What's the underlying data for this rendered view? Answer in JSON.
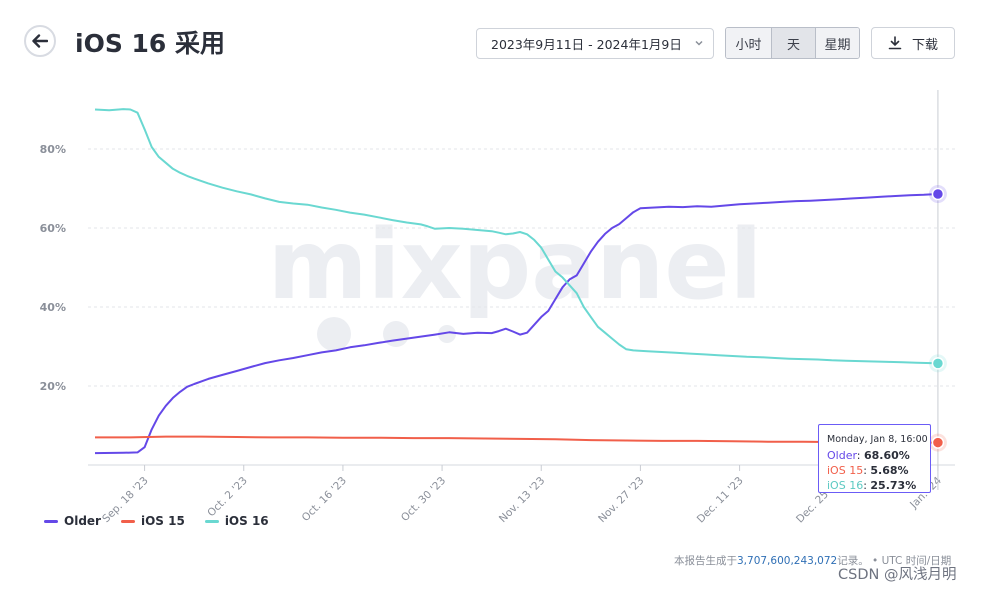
{
  "header": {
    "title": "iOS 16 采用",
    "date_range": "2023年9月11日 - 2024年1月9日",
    "granularity": [
      "小时",
      "天",
      "星期"
    ],
    "granularity_selected": "天",
    "download_label": "下载"
  },
  "watermark": "mixpanel",
  "chart_data": {
    "type": "line",
    "title": "iOS 16 采用",
    "x_tick_labels": [
      "Sep. 18 '23",
      "Oct. 2 '23",
      "Oct. 16 '23",
      "Oct. 30 '23",
      "Nov. 13 '23",
      "Nov. 27 '23",
      "Dec. 11 '23",
      "Dec. 25 '23",
      "Jan. '24"
    ],
    "y_tick_labels": [
      "20%",
      "40%",
      "60%",
      "80%"
    ],
    "y_ticks": [
      20,
      40,
      60,
      80
    ],
    "ylim": [
      0,
      100
    ],
    "x_range_days": [
      0,
      120
    ],
    "x_tick_days": [
      7,
      21,
      35,
      49,
      63,
      77,
      91,
      105,
      119
    ],
    "series": [
      {
        "name": "Older",
        "color": "#6448e8",
        "points": [
          [
            0,
            3.0
          ],
          [
            4,
            3.1
          ],
          [
            6,
            3.2
          ],
          [
            7,
            4.5
          ],
          [
            8,
            9
          ],
          [
            9,
            12.5
          ],
          [
            10,
            15
          ],
          [
            11,
            17
          ],
          [
            12,
            18.5
          ],
          [
            13,
            19.8
          ],
          [
            14,
            20.5
          ],
          [
            16,
            21.8
          ],
          [
            18,
            22.8
          ],
          [
            20,
            23.8
          ],
          [
            22,
            24.8
          ],
          [
            24,
            25.8
          ],
          [
            26,
            26.5
          ],
          [
            28,
            27.1
          ],
          [
            30,
            27.8
          ],
          [
            32,
            28.5
          ],
          [
            34,
            29.0
          ],
          [
            36,
            29.8
          ],
          [
            38,
            30.3
          ],
          [
            40,
            30.9
          ],
          [
            42,
            31.5
          ],
          [
            44,
            32.0
          ],
          [
            46,
            32.5
          ],
          [
            48,
            33.0
          ],
          [
            50,
            33.6
          ],
          [
            52,
            33.2
          ],
          [
            54,
            33.5
          ],
          [
            56,
            33.4
          ],
          [
            57,
            33.9
          ],
          [
            58,
            34.5
          ],
          [
            59,
            33.8
          ],
          [
            60,
            33.0
          ],
          [
            61,
            33.5
          ],
          [
            62,
            35.5
          ],
          [
            63,
            37.5
          ],
          [
            64,
            39
          ],
          [
            65,
            42
          ],
          [
            66,
            45
          ],
          [
            67,
            47
          ],
          [
            68,
            48
          ],
          [
            69,
            51
          ],
          [
            70,
            54
          ],
          [
            71,
            56.5
          ],
          [
            72,
            58.5
          ],
          [
            73,
            60
          ],
          [
            74,
            61
          ],
          [
            75,
            62.5
          ],
          [
            76,
            64
          ],
          [
            77,
            65
          ],
          [
            79,
            65.2
          ],
          [
            81,
            65.4
          ],
          [
            83,
            65.3
          ],
          [
            85,
            65.5
          ],
          [
            87,
            65.4
          ],
          [
            89,
            65.7
          ],
          [
            91,
            66.0
          ],
          [
            93,
            66.2
          ],
          [
            95,
            66.4
          ],
          [
            97,
            66.6
          ],
          [
            99,
            66.8
          ],
          [
            101,
            66.9
          ],
          [
            103,
            67.1
          ],
          [
            105,
            67.3
          ],
          [
            107,
            67.5
          ],
          [
            109,
            67.7
          ],
          [
            111,
            67.9
          ],
          [
            113,
            68.1
          ],
          [
            115,
            68.3
          ],
          [
            117,
            68.4
          ],
          [
            119,
            68.6
          ]
        ]
      },
      {
        "name": "iOS 15",
        "color": "#f15f4a",
        "points": [
          [
            0,
            7.0
          ],
          [
            5,
            7.0
          ],
          [
            10,
            7.2
          ],
          [
            15,
            7.2
          ],
          [
            20,
            7.1
          ],
          [
            25,
            7.0
          ],
          [
            30,
            7.0
          ],
          [
            35,
            6.9
          ],
          [
            40,
            6.9
          ],
          [
            45,
            6.8
          ],
          [
            50,
            6.8
          ],
          [
            55,
            6.7
          ],
          [
            60,
            6.6
          ],
          [
            65,
            6.5
          ],
          [
            70,
            6.3
          ],
          [
            75,
            6.2
          ],
          [
            80,
            6.1
          ],
          [
            85,
            6.1
          ],
          [
            90,
            6.0
          ],
          [
            95,
            5.9
          ],
          [
            100,
            5.9
          ],
          [
            105,
            5.8
          ],
          [
            110,
            5.8
          ],
          [
            115,
            5.7
          ],
          [
            119,
            5.68
          ]
        ]
      },
      {
        "name": "iOS 16",
        "color": "#6ad8d1",
        "points": [
          [
            0,
            90.0
          ],
          [
            2,
            89.8
          ],
          [
            4,
            90.1
          ],
          [
            5,
            90.0
          ],
          [
            6,
            89.2
          ],
          [
            7,
            85
          ],
          [
            8,
            80.5
          ],
          [
            9,
            78
          ],
          [
            10,
            76.5
          ],
          [
            11,
            75
          ],
          [
            12,
            74
          ],
          [
            13,
            73.2
          ],
          [
            14,
            72.5
          ],
          [
            16,
            71.3
          ],
          [
            18,
            70.2
          ],
          [
            20,
            69.3
          ],
          [
            22,
            68.5
          ],
          [
            24,
            67.5
          ],
          [
            26,
            66.6
          ],
          [
            28,
            66.2
          ],
          [
            30,
            65.9
          ],
          [
            32,
            65.2
          ],
          [
            34,
            64.6
          ],
          [
            36,
            63.9
          ],
          [
            38,
            63.4
          ],
          [
            40,
            62.7
          ],
          [
            42,
            62.0
          ],
          [
            44,
            61.4
          ],
          [
            46,
            60.9
          ],
          [
            47,
            60.4
          ],
          [
            48,
            59.8
          ],
          [
            50,
            60.0
          ],
          [
            52,
            59.8
          ],
          [
            54,
            59.5
          ],
          [
            56,
            59.2
          ],
          [
            57,
            58.8
          ],
          [
            58,
            58.4
          ],
          [
            59,
            58.6
          ],
          [
            60,
            59.0
          ],
          [
            61,
            58.4
          ],
          [
            62,
            57
          ],
          [
            63,
            55
          ],
          [
            64,
            52
          ],
          [
            65,
            49
          ],
          [
            66,
            47.5
          ],
          [
            67,
            45.5
          ],
          [
            68,
            43.5
          ],
          [
            69,
            40
          ],
          [
            70,
            37.5
          ],
          [
            71,
            35
          ],
          [
            72,
            33.5
          ],
          [
            73,
            32
          ],
          [
            74,
            30.5
          ],
          [
            75,
            29.3
          ],
          [
            76,
            29.0
          ],
          [
            78,
            28.8
          ],
          [
            80,
            28.6
          ],
          [
            82,
            28.4
          ],
          [
            84,
            28.2
          ],
          [
            86,
            28.0
          ],
          [
            88,
            27.8
          ],
          [
            90,
            27.6
          ],
          [
            92,
            27.4
          ],
          [
            94,
            27.3
          ],
          [
            96,
            27.1
          ],
          [
            98,
            26.9
          ],
          [
            100,
            26.8
          ],
          [
            102,
            26.7
          ],
          [
            104,
            26.5
          ],
          [
            106,
            26.4
          ],
          [
            108,
            26.3
          ],
          [
            110,
            26.2
          ],
          [
            112,
            26.1
          ],
          [
            114,
            26.0
          ],
          [
            116,
            25.9
          ],
          [
            118,
            25.8
          ],
          [
            119,
            25.73
          ]
        ]
      }
    ],
    "hover": {
      "title": "Monday, Jan 8, 16:00",
      "values": [
        {
          "name": "Older",
          "value": "68.60%"
        },
        {
          "name": "iOS 15",
          "value": "5.68%"
        },
        {
          "name": "iOS 16",
          "value": "25.73%"
        }
      ]
    },
    "legend_position": "bottom-left"
  },
  "footer": {
    "prefix": "本报告生成于",
    "count": "3,707,600,243,072",
    "suffix": "记录。 • UTC 时间/日期"
  },
  "credit": "CSDN @风浅月明"
}
